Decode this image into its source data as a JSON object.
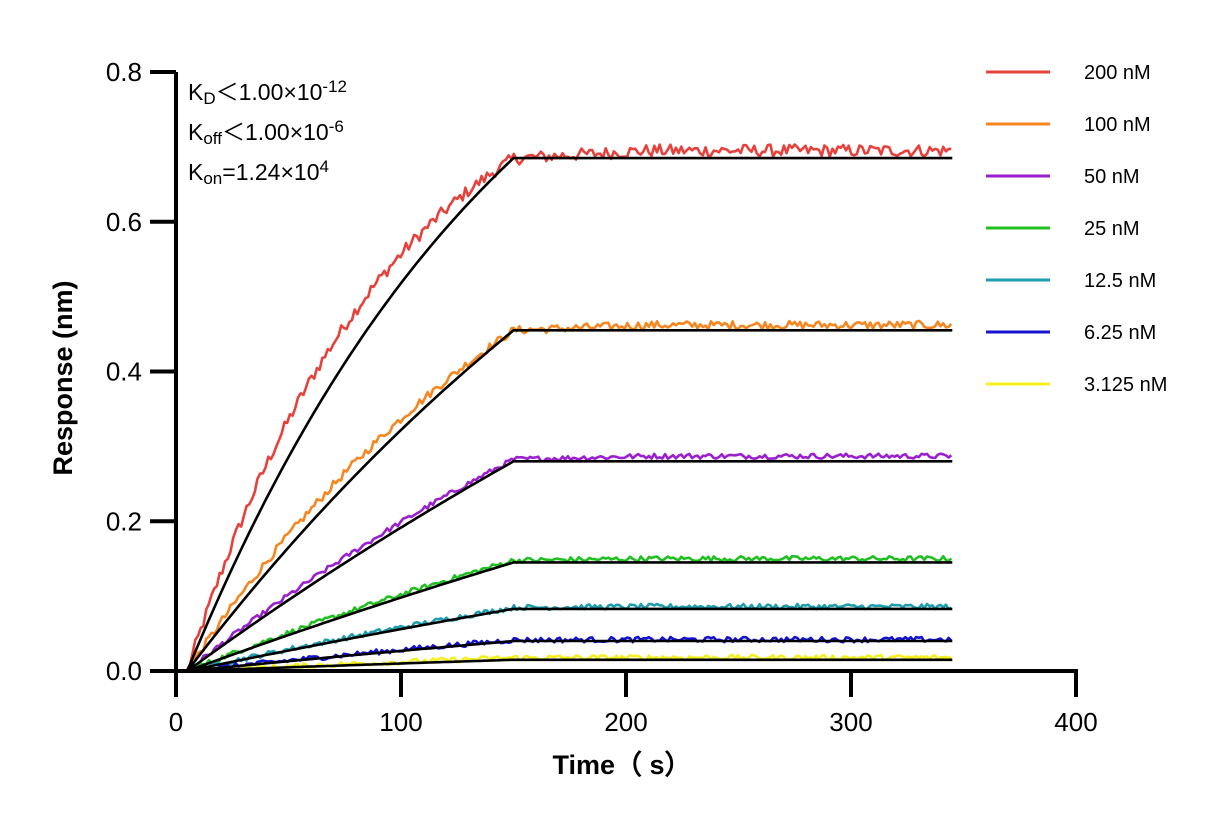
{
  "chart_data": {
    "type": "line",
    "title": "",
    "xlabel": "Time（ s）",
    "ylabel": "Response (nm)",
    "xlim": [
      0,
      400
    ],
    "ylim": [
      0,
      0.8
    ],
    "xticks": [
      "0",
      "100",
      "200",
      "300",
      "400"
    ],
    "yticks": [
      "0.0",
      "0.2",
      "0.4",
      "0.6",
      "0.8"
    ],
    "grid": false,
    "legend_position": "right",
    "association_end_time": 150,
    "end_time": 345,
    "annotations": [
      {
        "symbol": "K",
        "sub": "D",
        "op": "<",
        "value": "1.00×10",
        "sup": "-12"
      },
      {
        "symbol": "K",
        "sub": "off",
        "op": "<",
        "value": "1.00×10",
        "sup": "-6"
      },
      {
        "symbol": "K",
        "sub": "on",
        "op": "=",
        "value": "1.24×10",
        "sup": "4"
      }
    ],
    "series": [
      {
        "name": "200 nM",
        "color": "#e8413c",
        "plateau": 0.695,
        "fit_plateau": 0.685,
        "kobs": 0.011
      },
      {
        "name": "100 nM",
        "color": "#f7861f",
        "plateau": 0.462,
        "fit_plateau": 0.455,
        "kobs": 0.0055
      },
      {
        "name": "50 nM",
        "color": "#9b1fd0",
        "plateau": 0.287,
        "fit_plateau": 0.28,
        "kobs": 0.003
      },
      {
        "name": "25 nM",
        "color": "#21c021",
        "plateau": 0.15,
        "fit_plateau": 0.145,
        "kobs": 0.0022
      },
      {
        "name": "12.5 nM",
        "color": "#1f9eb0",
        "plateau": 0.086,
        "fit_plateau": 0.083,
        "kobs": 0.002
      },
      {
        "name": "6.25 nM",
        "color": "#1414d0",
        "plateau": 0.042,
        "fit_plateau": 0.04,
        "kobs": 0.0018
      },
      {
        "name": "3.125 nM",
        "color": "#f5f01c",
        "plateau": 0.018,
        "fit_plateau": 0.015,
        "kobs": 0.0015
      }
    ],
    "fit_color": "#000000"
  }
}
